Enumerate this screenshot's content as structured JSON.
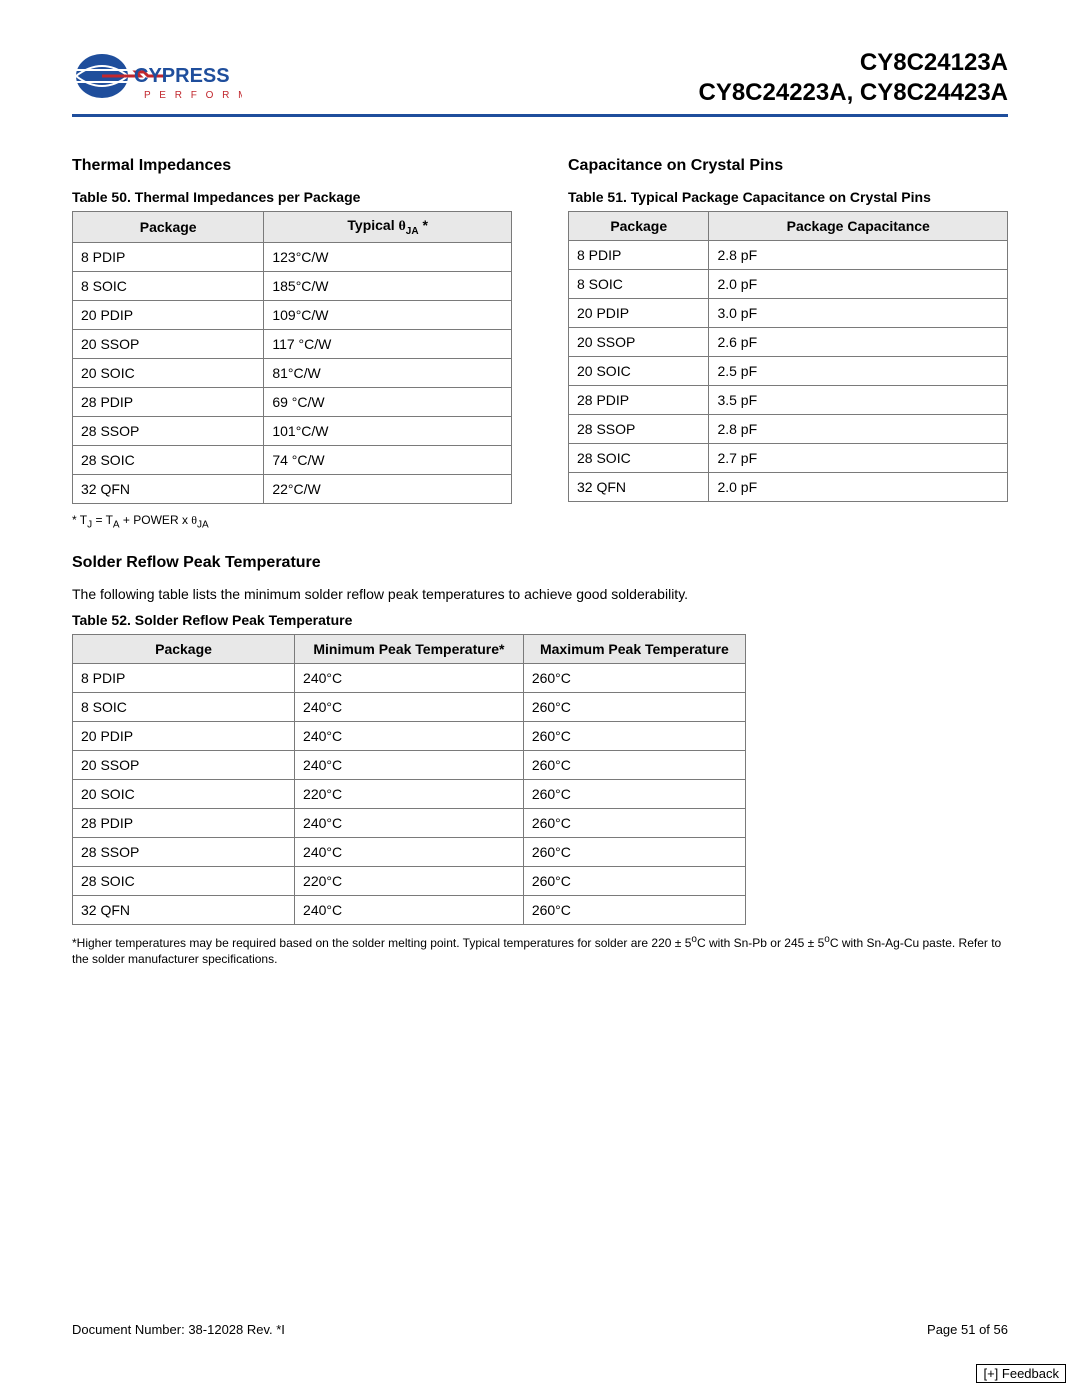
{
  "header": {
    "logo_text_main": "CYPRESS",
    "logo_text_sub": "P E R F O R M",
    "part_line1": "CY8C24123A",
    "part_line2": "CY8C24223A, CY8C24423A"
  },
  "left": {
    "section_title": "Thermal Impedances",
    "table_caption": "Table 50.  Thermal Impedances per Package",
    "col1": "Package",
    "col2_prefix": "Typical ",
    "col2_theta": "θ",
    "col2_sub": "JA",
    "col2_suffix": " *",
    "rows": [
      {
        "pkg": "8 PDIP",
        "val": "123°C/W"
      },
      {
        "pkg": "8 SOIC",
        "val": "185°C/W"
      },
      {
        "pkg": "20 PDIP",
        "val": "109°C/W"
      },
      {
        "pkg": "20 SSOP",
        "val": "117 °C/W"
      },
      {
        "pkg": "20 SOIC",
        "val": "81°C/W"
      },
      {
        "pkg": "28 PDIP",
        "val": "69 °C/W"
      },
      {
        "pkg": "28 SSOP",
        "val": "101°C/W"
      },
      {
        "pkg": "28 SOIC",
        "val": "74 °C/W"
      },
      {
        "pkg": "32 QFN",
        "val": "22°C/W"
      }
    ],
    "footnote_prefix": "* T",
    "footnote_sub1": "J",
    "footnote_mid": " = T",
    "footnote_sub2": "A",
    "footnote_mid2": " + POWER x ",
    "footnote_theta": "θ",
    "footnote_sub3": "JA"
  },
  "right": {
    "section_title": "Capacitance on Crystal Pins",
    "table_caption": "Table 51.  Typical Package Capacitance on Crystal Pins",
    "col1": "Package",
    "col2": "Package Capacitance",
    "rows": [
      {
        "pkg": "8 PDIP",
        "val": "2.8 pF"
      },
      {
        "pkg": "8 SOIC",
        "val": "2.0 pF"
      },
      {
        "pkg": "20 PDIP",
        "val": "3.0 pF"
      },
      {
        "pkg": "20 SSOP",
        "val": "2.6 pF"
      },
      {
        "pkg": "20 SOIC",
        "val": "2.5 pF"
      },
      {
        "pkg": "28 PDIP",
        "val": "3.5 pF"
      },
      {
        "pkg": "28 SSOP",
        "val": "2.8 pF"
      },
      {
        "pkg": "28 SOIC",
        "val": "2.7 pF"
      },
      {
        "pkg": "32 QFN",
        "val": "2.0 pF"
      }
    ]
  },
  "solder": {
    "section_title": "Solder Reflow Peak Temperature",
    "intro": "The following table lists the minimum solder reflow peak temperatures to achieve good solderability.",
    "table_caption": "Table 52.  Solder Reflow Peak Temperature",
    "col1": "Package",
    "col2": "Minimum Peak Temperature*",
    "col3": "Maximum Peak Temperature",
    "rows": [
      {
        "pkg": "8 PDIP",
        "min": "240°C",
        "max": "260°C"
      },
      {
        "pkg": "8 SOIC",
        "min": "240°C",
        "max": "260°C"
      },
      {
        "pkg": "20 PDIP",
        "min": "240°C",
        "max": "260°C"
      },
      {
        "pkg": "20 SSOP",
        "min": "240°C",
        "max": "260°C"
      },
      {
        "pkg": "20 SOIC",
        "min": "220°C",
        "max": "260°C"
      },
      {
        "pkg": "28 PDIP",
        "min": "240°C",
        "max": "260°C"
      },
      {
        "pkg": "28 SSOP",
        "min": "240°C",
        "max": "260°C"
      },
      {
        "pkg": "28 SOIC",
        "min": "220°C",
        "max": "260°C"
      },
      {
        "pkg": "32 QFN",
        "min": "240°C",
        "max": "260°C"
      }
    ],
    "footnote_a": "*Higher temperatures may be required based on the solder melting point. Typical temperatures for solder are 220 ± 5",
    "footnote_sup": "o",
    "footnote_b": "C with Sn-Pb or 245 ± 5",
    "footnote_c": "C with Sn-Ag-Cu paste. Refer to the solder manufacturer specifications."
  },
  "footer": {
    "doc": "Document Number: 38-12028  Rev. *I",
    "page": "Page 51 of 56",
    "feedback": "[+] Feedback"
  },
  "style": {
    "accent_color": "#1f4e9c",
    "logo_red": "#c1272d",
    "table_header_bg": "#e8e8e8",
    "border_color": "#7a7a7a"
  }
}
